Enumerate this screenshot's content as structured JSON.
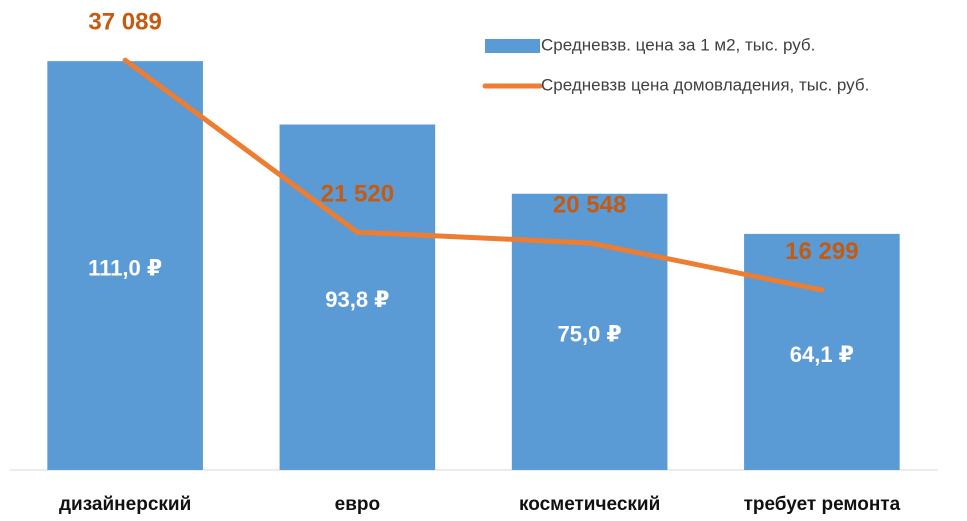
{
  "chart_data": {
    "type": "bar_line",
    "categories": [
      "дизайнерский",
      "евро",
      "косметический",
      "требует ремонта"
    ],
    "series": [
      {
        "name": "Средневзв. цена за 1 м2, тыс. руб.",
        "type": "bar",
        "color": "#5b9bd5",
        "values": [
          111.0,
          93.8,
          75.0,
          64.1
        ],
        "value_labels": [
          "111,0 ₽",
          "93,8 ₽",
          "75,0 ₽",
          "64,1 ₽"
        ]
      },
      {
        "name": "Средневзв цена домовладения, тыс. руб.",
        "type": "line",
        "axis": "y2",
        "color": "#ed7d31",
        "values": [
          37089,
          21520,
          20548,
          16299
        ],
        "value_labels": [
          "37 089",
          "21 520",
          "20 548",
          "16 299"
        ]
      }
    ],
    "ylim": [
      0,
      120
    ],
    "y2lim": [
      0,
      40000
    ],
    "legend": "upper right"
  }
}
